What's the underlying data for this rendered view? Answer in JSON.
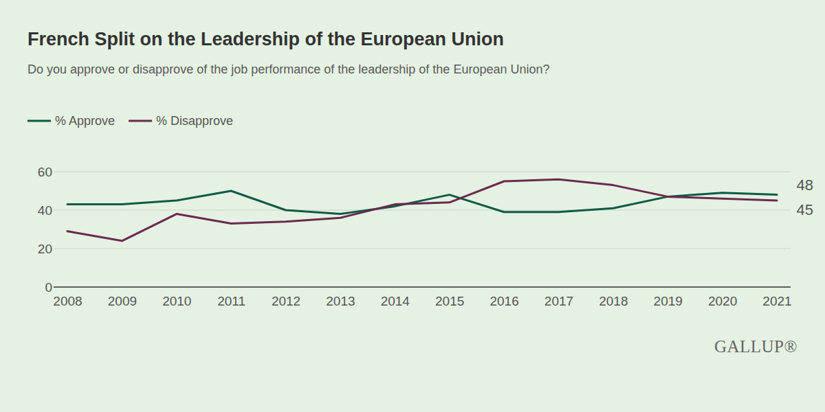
{
  "chart_data": {
    "type": "line",
    "title": "French Split on the Leadership of the European Union",
    "subtitle": "Do you approve or disapprove of the job performance of the leadership of the European Union?",
    "categories": [
      "2008",
      "2009",
      "2010",
      "2011",
      "2012",
      "2013",
      "2014",
      "2015",
      "2016",
      "2017",
      "2018",
      "2019",
      "2020",
      "2021"
    ],
    "series": [
      {
        "name": "% Approve",
        "color": "#0b5a45",
        "values": [
          43,
          43,
          45,
          50,
          40,
          38,
          42,
          48,
          39,
          39,
          41,
          47,
          49,
          48
        ],
        "value_labels": [
          null,
          null,
          null,
          null,
          null,
          null,
          null,
          null,
          null,
          null,
          null,
          null,
          null,
          "48"
        ]
      },
      {
        "name": "% Disapprove",
        "color": "#6a2a4e",
        "values": [
          29,
          24,
          38,
          33,
          34,
          36,
          43,
          44,
          55,
          56,
          53,
          47,
          46,
          45
        ],
        "value_labels": [
          null,
          null,
          null,
          null,
          null,
          null,
          null,
          null,
          null,
          null,
          null,
          null,
          null,
          "45"
        ]
      }
    ],
    "ylim": [
      0,
      60
    ],
    "yticks": [
      0,
      20,
      40,
      60
    ],
    "grid": true,
    "legend": "top-left",
    "logo": "GALLUP®"
  }
}
